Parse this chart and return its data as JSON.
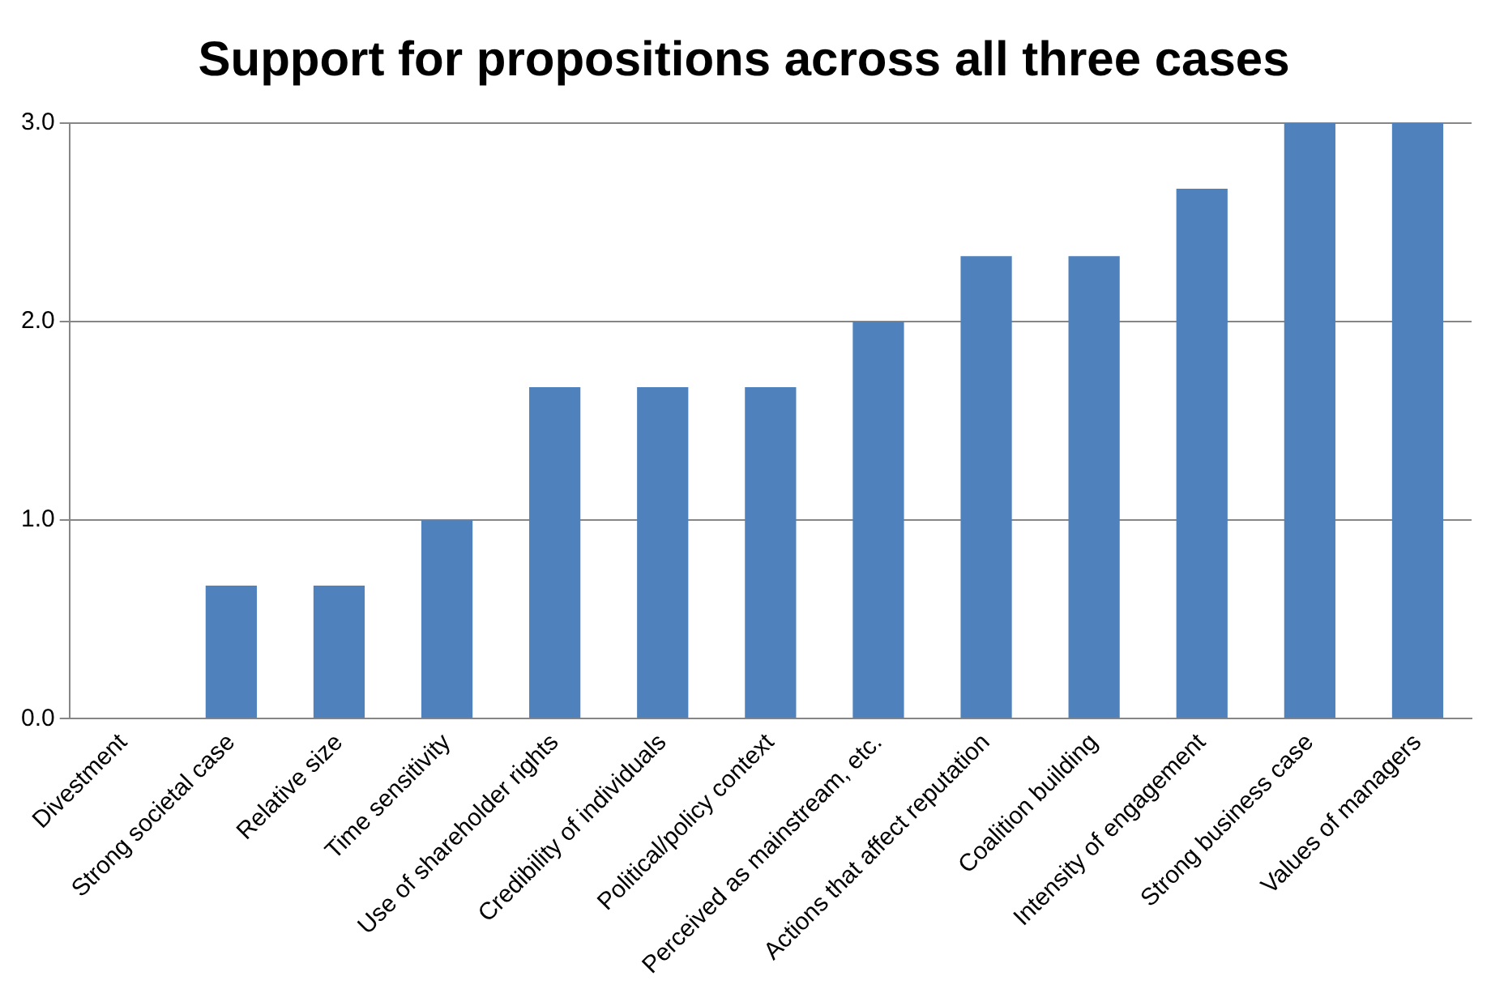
{
  "chart_data": {
    "type": "bar",
    "title": "Support for propositions across all three cases",
    "categories": [
      "Divestment",
      "Strong societal case",
      "Relative size",
      "Time sensitivity",
      "Use of shareholder rights",
      "Credibility of individuals",
      "Political/policy context",
      "Perceived as mainstream, etc.",
      "Actions that affect reputation",
      "Coalition building",
      "Intensity of engagement",
      "Strong business case",
      "Values of managers"
    ],
    "values": [
      0,
      0.67,
      0.67,
      1.0,
      1.67,
      1.67,
      1.67,
      2.0,
      2.33,
      2.33,
      2.67,
      3.0,
      3.0
    ],
    "color": "#4f81bd",
    "ylim": [
      0,
      3
    ],
    "yticks": [
      {
        "value": 0,
        "label": "0.0"
      },
      {
        "value": 1,
        "label": "1.0"
      },
      {
        "value": 2,
        "label": "2.0"
      },
      {
        "value": 3,
        "label": "3.0"
      }
    ],
    "grid": "y",
    "legend": false
  }
}
